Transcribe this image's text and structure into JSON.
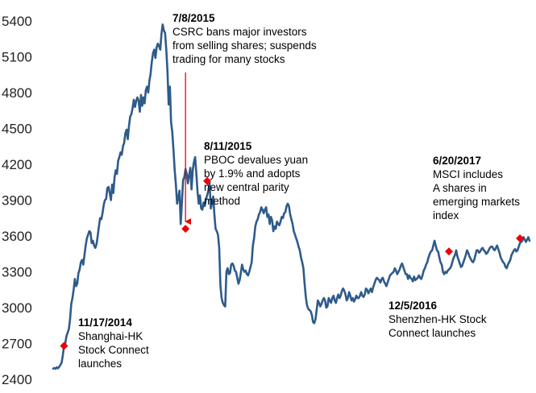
{
  "chart_data": {
    "type": "line",
    "title": "",
    "xlabel": "",
    "ylabel": "",
    "ylim": [
      2400,
      5400
    ],
    "yticks": [
      "5400",
      "5100",
      "4800",
      "4500",
      "4200",
      "3900",
      "3600",
      "3300",
      "3000",
      "2700",
      "2400"
    ],
    "grid": false,
    "line_color": "#2e5b8a",
    "marker_color": "#e8000b",
    "series": [
      {
        "values": [
          2490,
          2495,
          2488,
          2500,
          2492,
          2505,
          2520,
          2540,
          2600,
          2680,
          2700,
          2760,
          2790,
          2820,
          2900,
          3030,
          3080,
          3150,
          3240,
          3180,
          3200,
          3290,
          3320,
          3380,
          3400,
          3360,
          3440,
          3520,
          3580,
          3610,
          3640,
          3630,
          3540,
          3560,
          3520,
          3500,
          3530,
          3600,
          3680,
          3750,
          3740,
          3790,
          3860,
          3900,
          3910,
          4000,
          4010,
          3960,
          3900,
          4030,
          3960,
          4090,
          4150,
          4120,
          4230,
          4260,
          4300,
          4280,
          4350,
          4380,
          4460,
          4490,
          4410,
          4520,
          4600,
          4620,
          4670,
          4740,
          4680,
          4730,
          4760,
          4730,
          4640,
          4780,
          4690,
          4760,
          4710,
          4820,
          4850,
          4800,
          4900,
          4960,
          5060,
          5130,
          5160,
          5090,
          5180,
          5210,
          5190,
          5160,
          5290,
          5370,
          5320,
          5300,
          5160,
          4980,
          4700,
          4850,
          4550,
          4470,
          4320,
          4150,
          4030,
          3870,
          3920,
          3980,
          3700,
          3880,
          4070,
          4090,
          4160,
          4120,
          4040,
          4110,
          4170,
          3990,
          4150,
          4220,
          4260,
          4120,
          3970,
          3870,
          3940,
          3830,
          3820,
          3880,
          3850,
          3910,
          3940,
          3980,
          4050,
          3830,
          3870,
          3930,
          3780,
          3660,
          3640,
          3610,
          3500,
          3190,
          3080,
          3040,
          3020,
          3010,
          3300,
          3330,
          3280,
          3290,
          3360,
          3370,
          3350,
          3310,
          3300,
          3250,
          3200,
          3230,
          3290,
          3360,
          3320,
          3300,
          3310,
          3280,
          3270,
          3300,
          3340,
          3380,
          3520,
          3580,
          3680,
          3720,
          3740,
          3780,
          3800,
          3840,
          3820,
          3790,
          3820,
          3840,
          3760,
          3780,
          3700,
          3760,
          3730,
          3640,
          3680,
          3660,
          3720,
          3700,
          3690,
          3720,
          3760,
          3750,
          3790,
          3800,
          3850,
          3870,
          3850,
          3780,
          3740,
          3700,
          3640,
          3610,
          3580,
          3550,
          3510,
          3480,
          3420,
          3380,
          3330,
          3200,
          3090,
          3020,
          2990,
          2980,
          2970,
          2940,
          2880,
          2870,
          2900,
          2980,
          3060,
          3040,
          3010,
          3030,
          3060,
          3080,
          3060,
          3000,
          3010,
          3080,
          3060,
          3040,
          3080,
          3100,
          3060,
          3040,
          3080,
          3110,
          3080,
          3100,
          3140,
          3160,
          3140,
          3110,
          3060,
          3080,
          3130,
          3100,
          3060,
          3080,
          3050,
          3070,
          3100,
          3080,
          3080,
          3100,
          3130,
          3100,
          3090,
          3110,
          3160,
          3150,
          3120,
          3140,
          3160,
          3130,
          3170,
          3200,
          3230,
          3250,
          3240,
          3230,
          3210,
          3240,
          3250,
          3220,
          3200,
          3180,
          3210,
          3240,
          3270,
          3280,
          3290,
          3300,
          3330,
          3310,
          3280,
          3300,
          3320,
          3350,
          3370,
          3340,
          3310,
          3280,
          3280,
          3240,
          3270,
          3250,
          3240,
          3220,
          3260,
          3230,
          3240,
          3250,
          3270,
          3250,
          3240,
          3270,
          3310,
          3330,
          3360,
          3380,
          3420,
          3450,
          3470,
          3480,
          3520,
          3560,
          3520,
          3480,
          3470,
          3420,
          3380,
          3360,
          3300,
          3280,
          3300,
          3290,
          3310,
          3320,
          3330,
          3350,
          3390,
          3420,
          3440,
          3480,
          3430,
          3400,
          3370,
          3340,
          3350,
          3380,
          3410,
          3440,
          3480,
          3460,
          3430,
          3410,
          3390,
          3380,
          3400,
          3440,
          3480,
          3480,
          3460,
          3470,
          3490,
          3500,
          3480,
          3470,
          3450,
          3460,
          3480,
          3500,
          3510,
          3510,
          3490,
          3480,
          3500,
          3520,
          3490,
          3460,
          3420,
          3400,
          3380,
          3370,
          3340,
          3330,
          3360,
          3380,
          3400,
          3440,
          3460,
          3480,
          3490,
          3470,
          3480,
          3510,
          3540,
          3550,
          3560,
          3590,
          3570,
          3550,
          3570,
          3590,
          3560
        ]
      }
    ],
    "annotations": [
      {
        "date": "11/17/2014",
        "text": [
          "Shanghai-HK",
          "Stock Connect",
          "launches"
        ],
        "value": 2680,
        "index": 9
      },
      {
        "date": "7/8/2015",
        "text": [
          "CSRC bans major investors",
          "from selling shares; suspends",
          "trading for many stocks"
        ],
        "value": 3660,
        "index": 110
      },
      {
        "date": "8/11/2015",
        "text": [
          "PBOC devalues yuan",
          "by 1.9% and adopts",
          "new central parity",
          "method"
        ],
        "value": 4060,
        "index": 128
      },
      {
        "date": "12/5/2016",
        "text": [
          "Shenzhen-HK  Stock",
          "Connect launches"
        ],
        "value": 3470,
        "index": 329
      },
      {
        "date": "6/20/2017",
        "text": [
          "MSCI includes",
          "A shares in",
          "emerging  markets",
          "index"
        ],
        "value": 3580,
        "index": 388
      }
    ]
  }
}
